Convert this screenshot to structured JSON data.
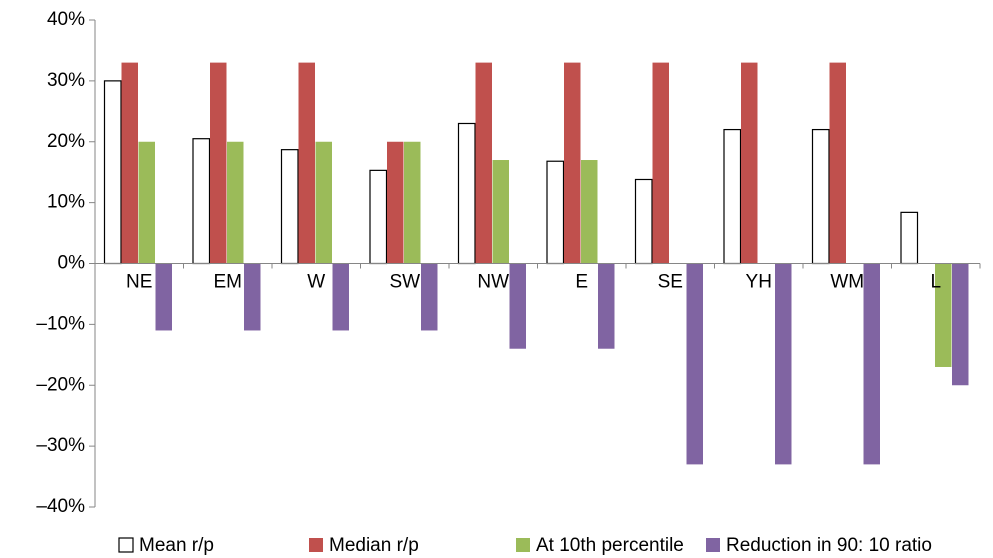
{
  "chart_data": {
    "type": "bar",
    "categories": [
      "NE",
      "EM",
      "W",
      "SW",
      "NW",
      "E",
      "SE",
      "YH",
      "WM",
      "L"
    ],
    "series": [
      {
        "name": "Mean r/p",
        "color": "#ffffff",
        "values": [
          30,
          20.5,
          18.7,
          15.3,
          23,
          16.8,
          13.8,
          22,
          22,
          8.4
        ]
      },
      {
        "name": "Median r/p",
        "color": "#c0504d",
        "values": [
          33,
          33,
          33,
          20,
          33,
          33,
          33,
          33,
          33,
          null
        ]
      },
      {
        "name": "At 10th percentile",
        "color": "#9bbb59",
        "values": [
          20,
          20,
          20,
          20,
          17,
          17,
          null,
          null,
          null,
          -17
        ]
      },
      {
        "name": "Reduction in 90: 10 ratio",
        "color": "#8064a2",
        "values": [
          -11,
          -11,
          -11,
          -11,
          -14,
          -14,
          -33,
          -33,
          -33,
          -20
        ]
      }
    ],
    "ylim": [
      -40,
      40
    ],
    "yticks": [
      {
        "value": -40,
        "label": "–40%"
      },
      {
        "value": -30,
        "label": "–30%"
      },
      {
        "value": -20,
        "label": "–20%"
      },
      {
        "value": -10,
        "label": "–10%"
      },
      {
        "value": 0,
        "label": "0%"
      },
      {
        "value": 10,
        "label": "10%"
      },
      {
        "value": 20,
        "label": "20%"
      },
      {
        "value": 30,
        "label": "30%"
      },
      {
        "value": 40,
        "label": "40%"
      }
    ],
    "grid": false,
    "legend": "bottom"
  }
}
